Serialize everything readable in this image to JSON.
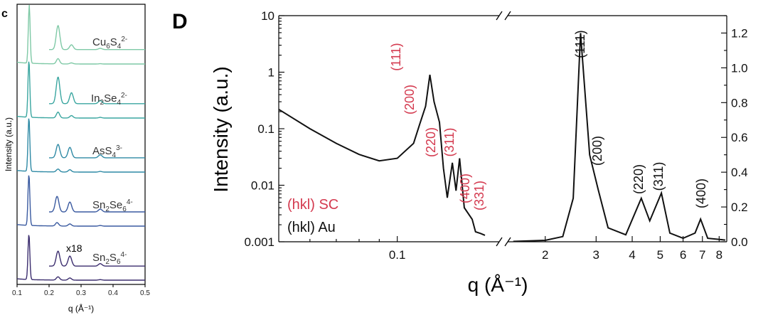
{
  "panel_c": {
    "letter": "c",
    "ylabel": "Intensity (a.u.)",
    "xlabel": "q (Å⁻¹)",
    "x_ticks": [
      "0.1",
      "0.2",
      "0.3",
      "0.4",
      "0.5"
    ],
    "multiplier_label": "x18"
  },
  "panel_d": {
    "letter": "D",
    "ylabel": "Intensity (a.u.)",
    "xlabel": "q (Å⁻¹)",
    "left_y_ticks": [
      "10",
      "1",
      "0.1",
      "0.01",
      "0.001"
    ],
    "right_y_ticks": [
      "1.2",
      "1.0",
      "0.8",
      "0.6",
      "0.4",
      "0.2",
      "0.0"
    ],
    "left_x_ticks": [
      "0.1"
    ],
    "right_x_ticks": [
      "2",
      "3",
      "4",
      "5",
      "6",
      "7",
      "8"
    ],
    "legend": {
      "sc": "(hkl) SC",
      "au": "(hkl) Au",
      "sc_color": "#d43a4f",
      "au_color": "#111111"
    },
    "sc_peak_labels": [
      "(111)",
      "(200)",
      "(220)",
      "(311)",
      "(400)",
      "(331)"
    ],
    "au_peak_labels": [
      "(111)",
      "(200)",
      "(220)",
      "(311)",
      "(400)"
    ]
  },
  "chart_data": [
    {
      "type": "line",
      "title": "",
      "xlabel": "q (Å⁻¹)",
      "ylabel": "Intensity (a.u.)",
      "xlim": [
        0.1,
        0.5
      ],
      "stacked": true,
      "series": [
        {
          "name": "Cu6S4 2-",
          "label_html": "Cu<sub>6</sub>S<sub>4</sub><sup>2-</sup>",
          "color": "#7fc9a6",
          "peaks": [
            [
              0.138,
              1.0
            ],
            [
              0.228,
              0.75
            ],
            [
              0.27,
              0.15
            ],
            [
              0.36,
              0.04
            ]
          ]
        },
        {
          "name": "In2Se4 2-",
          "color": "#3aa6a0",
          "peaks": [
            [
              0.137,
              1.0
            ],
            [
              0.228,
              0.85
            ],
            [
              0.27,
              0.35
            ],
            [
              0.36,
              0.1
            ]
          ]
        },
        {
          "name": "AsS4 3-",
          "color": "#2f8aa5",
          "peaks": [
            [
              0.137,
              1.0
            ],
            [
              0.228,
              0.45
            ],
            [
              0.265,
              0.35
            ],
            [
              0.36,
              0.1
            ]
          ]
        },
        {
          "name": "Sn2Se6 4-",
          "color": "#3a5aa0",
          "peaks": [
            [
              0.137,
              1.0
            ],
            [
              0.225,
              0.55
            ],
            [
              0.265,
              0.35
            ],
            [
              0.36,
              0.1
            ]
          ]
        },
        {
          "name": "Sn2S6 4-",
          "color": "#3b2d6e",
          "peaks": [
            [
              0.137,
              1.0
            ],
            [
              0.228,
              0.6
            ],
            [
              0.265,
              0.4
            ],
            [
              0.36,
              0.1
            ]
          ]
        }
      ]
    },
    {
      "type": "line",
      "title": "",
      "xlabel": "q (Å⁻¹)",
      "ylabel_left": "Intensity (a.u.)",
      "y_scale_left": "log",
      "ylim_left": [
        0.001,
        10
      ],
      "xlim_left": [
        0.05,
        0.18
      ],
      "x_scale_left": "log",
      "ylim_right": [
        0.0,
        1.3
      ],
      "xlim_right": [
        1.5,
        8.5
      ],
      "x_scale_right": "log",
      "series": [
        {
          "name": "SC",
          "color": "#111111",
          "points": [
            [
              0.05,
              0.22
            ],
            [
              0.06,
              0.1
            ],
            [
              0.07,
              0.055
            ],
            [
              0.08,
              0.035
            ],
            [
              0.09,
              0.027
            ],
            [
              0.1,
              0.03
            ],
            [
              0.11,
              0.055
            ],
            [
              0.114,
              0.12
            ],
            [
              0.118,
              0.25
            ],
            [
              0.121,
              0.9
            ],
            [
              0.124,
              0.3
            ],
            [
              0.128,
              0.13
            ],
            [
              0.131,
              0.02
            ],
            [
              0.134,
              0.006
            ],
            [
              0.138,
              0.025
            ],
            [
              0.141,
              0.008
            ],
            [
              0.144,
              0.03
            ],
            [
              0.148,
              0.004
            ],
            [
              0.155,
              0.0025
            ],
            [
              0.158,
              0.0015
            ],
            [
              0.163,
              0.0014
            ],
            [
              0.167,
              0.0013
            ]
          ],
          "peak_labels": [
            {
              "label": "(111)",
              "q": 0.121
            },
            {
              "label": "(200)",
              "q": 0.128
            },
            {
              "label": "(220)",
              "q": 0.138
            },
            {
              "label": "(311)",
              "q": 0.144
            },
            {
              "label": "(400)",
              "q": 0.158
            },
            {
              "label": "(331)",
              "q": 0.163
            }
          ]
        },
        {
          "name": "Au",
          "color": "#111111",
          "points": [
            [
              1.55,
              0.002
            ],
            [
              2.0,
              0.008
            ],
            [
              2.3,
              0.03
            ],
            [
              2.5,
              0.25
            ],
            [
              2.65,
              1.2
            ],
            [
              2.85,
              0.5
            ],
            [
              3.05,
              0.3
            ],
            [
              3.3,
              0.08
            ],
            [
              3.8,
              0.04
            ],
            [
              4.3,
              0.25
            ],
            [
              4.6,
              0.12
            ],
            [
              5.05,
              0.28
            ],
            [
              5.4,
              0.05
            ],
            [
              6.0,
              0.02
            ],
            [
              6.6,
              0.05
            ],
            [
              6.9,
              0.13
            ],
            [
              7.3,
              0.02
            ],
            [
              8.4,
              0.01
            ]
          ],
          "peak_labels": [
            {
              "label": "(111)",
              "q": 2.65
            },
            {
              "label": "(200)",
              "q": 3.05
            },
            {
              "label": "(220)",
              "q": 4.3
            },
            {
              "label": "(311)",
              "q": 5.05
            },
            {
              "label": "(400)",
              "q": 6.9
            }
          ]
        }
      ]
    }
  ]
}
